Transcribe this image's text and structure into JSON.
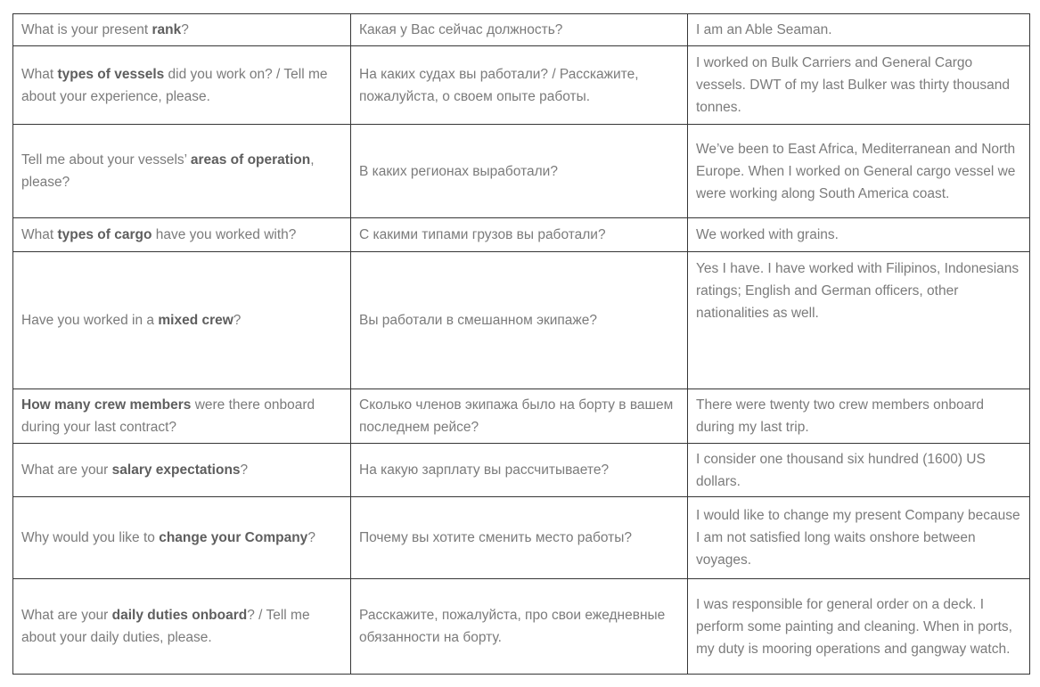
{
  "page": {
    "background": "#ffffff"
  },
  "table": {
    "description": "Seaman job interview questions with Russian translations and sample answers",
    "border_color": "#363636",
    "text_color": "#7b7b7b",
    "bold_color": "#5e5e5e",
    "columns": [
      "question_en",
      "translation_ru",
      "answer_en"
    ],
    "rows": [
      {
        "question": [
          {
            "t": "What is your present ",
            "b": false
          },
          {
            "t": "rank",
            "b": true
          },
          {
            "t": "?",
            "b": false
          }
        ],
        "translation": "Какая у Вас сейчас должность?",
        "answer": "I am an Able Seaman."
      },
      {
        "question": [
          {
            "t": "What ",
            "b": false
          },
          {
            "t": "types of vessels",
            "b": true
          },
          {
            "t": " did you work on? / Tell me about your experience, please.",
            "b": false
          }
        ],
        "translation": "На каких судах вы работали? / Расскажите, пожалуйста, о своем опыте работы.",
        "answer": "I worked on Bulk Carriers and General Cargo vessels. DWT of my last Bulker was thirty thousand tonnes."
      },
      {
        "question": [
          {
            "t": "Tell me about your vessels’ ",
            "b": false
          },
          {
            "t": "areas of operation",
            "b": true
          },
          {
            "t": ", please?",
            "b": false
          }
        ],
        "translation": "В каких регионах выработали?",
        "answer": "We’ve been to East Africa, Mediterranean and North Europe. When I worked on General cargo vessel we were working along South America coast."
      },
      {
        "question": [
          {
            "t": "What ",
            "b": false
          },
          {
            "t": "types of cargo",
            "b": true
          },
          {
            "t": " have you worked with?",
            "b": false
          }
        ],
        "translation": "С какими типами грузов вы работали?",
        "answer": "We worked with grains."
      },
      {
        "question": [
          {
            "t": "Have you worked in a ",
            "b": false
          },
          {
            "t": "mixed crew",
            "b": true
          },
          {
            "t": "?",
            "b": false
          }
        ],
        "translation": "Вы работали в смешанном экипаже?",
        "answer": "Yes I have. I have worked with Filipinos, Indonesians ratings; English and German officers, other nationalities as well."
      },
      {
        "question": [
          {
            "t": "How many crew members",
            "b": true
          },
          {
            "t": " were there onboard during your last contract?",
            "b": false
          }
        ],
        "translation": "Сколько членов экипажа было на борту в вашем последнем рейсе?",
        "answer": "There were twenty two crew members onboard during my last trip."
      },
      {
        "question": [
          {
            "t": "What are your ",
            "b": false
          },
          {
            "t": "salary expectations",
            "b": true
          },
          {
            "t": "?",
            "b": false
          }
        ],
        "translation": "На какую зарплату вы рассчитываете?",
        "answer": "I consider one thousand six hundred (1600) US dollars."
      },
      {
        "question": [
          {
            "t": "Why would you like to ",
            "b": false
          },
          {
            "t": "change your Company",
            "b": true
          },
          {
            "t": "?",
            "b": false
          }
        ],
        "translation": "Почему вы хотите сменить место работы?",
        "answer": "I would like to change my present Company because I am not satisfied long waits onshore between voyages."
      },
      {
        "question": [
          {
            "t": "What are your ",
            "b": false
          },
          {
            "t": "daily duties onboard",
            "b": true
          },
          {
            "t": "? / Tell me about your daily duties, please.",
            "b": false
          }
        ],
        "translation": "Расскажите, пожалуйста, про свои ежедневные обязанности на борту.",
        "answer": "I was responsible for general order on a deck. I perform some painting and cleaning. When in ports, my duty is mooring operations and gangway watch."
      }
    ]
  }
}
